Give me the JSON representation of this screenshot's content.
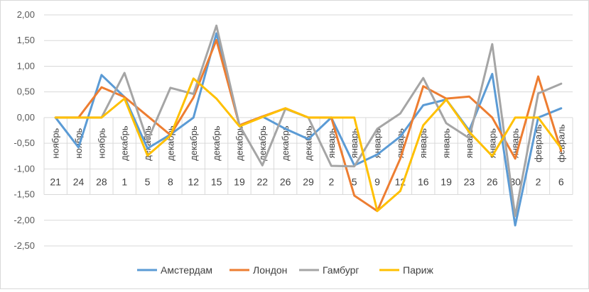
{
  "chart_data": {
    "type": "line",
    "grid": true,
    "legend_position": "bottom",
    "ylim": [
      -2.5,
      2.0
    ],
    "y_ticks": [
      "2,00",
      "1,50",
      "1,00",
      "0,50",
      "0,00",
      "-0,50",
      "-1,00",
      "-1,50",
      "-2,00",
      "-2,50"
    ],
    "categories": [
      {
        "month": "ноябрь",
        "day": "21"
      },
      {
        "month": "ноябрь",
        "day": "24"
      },
      {
        "month": "ноябрь",
        "day": "28"
      },
      {
        "month": "декабрь",
        "day": "1"
      },
      {
        "month": "декабрь",
        "day": "5"
      },
      {
        "month": "декабрь",
        "day": "8"
      },
      {
        "month": "декабрь",
        "day": "12"
      },
      {
        "month": "декабрь",
        "day": "15"
      },
      {
        "month": "декабрь",
        "day": "19"
      },
      {
        "month": "декабрь",
        "day": "22"
      },
      {
        "month": "декабрь",
        "day": "26"
      },
      {
        "month": "декабрь",
        "day": "29"
      },
      {
        "month": "январь",
        "day": "2"
      },
      {
        "month": "январь",
        "day": "5"
      },
      {
        "month": "январь",
        "day": "9"
      },
      {
        "month": "январь",
        "day": "12"
      },
      {
        "month": "январь",
        "day": "16"
      },
      {
        "month": "январь",
        "day": "19"
      },
      {
        "month": "январь",
        "day": "23"
      },
      {
        "month": "январь",
        "day": "26"
      },
      {
        "month": "январь",
        "day": "30"
      },
      {
        "month": "февраль",
        "day": "2"
      },
      {
        "month": "февраль",
        "day": "6"
      }
    ],
    "series": [
      {
        "name": "Амстердам",
        "color": "#5b9bd5",
        "values": [
          0.0,
          -0.58,
          0.83,
          0.4,
          -0.6,
          -0.33,
          0.0,
          1.64,
          -0.15,
          0.02,
          -0.22,
          -0.42,
          0.0,
          -0.93,
          -0.72,
          -0.37,
          0.24,
          0.35,
          -0.25,
          0.85,
          -2.1,
          0.0,
          0.18
        ]
      },
      {
        "name": "Лондон",
        "color": "#ed7d31",
        "values": [
          0.0,
          0.0,
          0.59,
          0.4,
          0.03,
          -0.34,
          0.39,
          1.51,
          -0.15,
          0.02,
          0.18,
          0.0,
          0.0,
          -1.52,
          -1.82,
          -0.8,
          0.61,
          0.37,
          0.41,
          0.0,
          -0.8,
          0.8,
          -0.65
        ]
      },
      {
        "name": "Гамбург",
        "color": "#a5a5a5",
        "values": [
          0.0,
          0.0,
          0.0,
          0.87,
          -0.45,
          0.58,
          0.46,
          1.79,
          -0.15,
          -0.93,
          0.17,
          0.0,
          -0.94,
          -0.95,
          -0.22,
          0.08,
          0.77,
          -0.11,
          -0.4,
          1.43,
          -1.92,
          0.47,
          0.66
        ]
      },
      {
        "name": "Париж",
        "color": "#ffc000",
        "values": [
          0.0,
          0.0,
          0.0,
          0.37,
          -0.74,
          -0.35,
          0.76,
          0.37,
          -0.17,
          0.01,
          0.18,
          0.0,
          0.0,
          0.0,
          -1.82,
          -1.43,
          -0.15,
          0.35,
          -0.28,
          -0.75,
          0.0,
          0.0,
          -0.6
        ]
      }
    ]
  }
}
